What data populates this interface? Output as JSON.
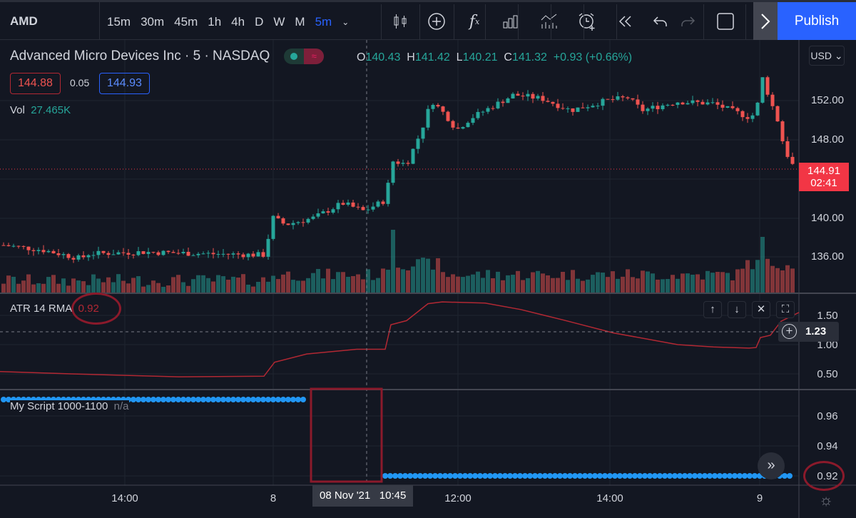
{
  "toolbar": {
    "symbol": "AMD",
    "intervals": [
      "15m",
      "30m",
      "45m",
      "1h",
      "4h",
      "D",
      "W",
      "M"
    ],
    "active_interval": "5m",
    "publish_label": "Publish",
    "icons": [
      "candles-icon",
      "add-circle-icon",
      "indicators-fx-icon",
      "compare-bars-icon",
      "templates-icon",
      "alarm-add-icon",
      "replay-icon",
      "undo-icon",
      "redo-icon",
      "rectangle-icon"
    ]
  },
  "legend": {
    "title": "Advanced Micro Devices Inc · 5 · NASDAQ",
    "o_label": "O",
    "o": "140.43",
    "h_label": "H",
    "h": "141.42",
    "l_label": "L",
    "l": "140.21",
    "c_label": "C",
    "c": "141.32",
    "change": "+0.93 (+0.66%)",
    "bid": "144.88",
    "spread": "0.05",
    "ask": "144.93",
    "vol_label": "Vol",
    "vol": "27.465K"
  },
  "price_axis": {
    "currency": "USD",
    "ticks": [
      "152.00",
      "148.00",
      "140.00",
      "136.00"
    ],
    "last_price": "144.91",
    "countdown": "02:41"
  },
  "atr": {
    "label": "ATR 14 RMA",
    "value": "0.92",
    "ticks": [
      "1.50",
      "1.00",
      "0.50"
    ],
    "crosshair_value": "1.23"
  },
  "script": {
    "label": "My Script 1000-1100",
    "value": "n/a",
    "ticks": [
      "0.96",
      "0.94",
      "0.92"
    ]
  },
  "time_axis": {
    "labels": [
      "14:00",
      "8",
      "12:00",
      "14:00",
      "9"
    ],
    "crosshair_date": "08 Nov '21",
    "crosshair_time": "10:45"
  },
  "colors": {
    "up": "#26a69a",
    "down": "#ef5350",
    "atr": "#b22833",
    "script": "#2196f3",
    "annotation": "#8b1a2b",
    "accent": "#2962ff"
  },
  "chart_data": [
    {
      "type": "candlestick",
      "series": "AMD 5m",
      "approx_close_path": [
        137.2,
        136.7,
        135.8,
        136.3,
        136.5,
        136.3,
        136.2,
        140.0,
        139.3,
        140.0,
        141.5,
        140.7,
        141.8,
        145.8,
        145.5,
        148.8,
        152.0,
        150.5,
        149.0,
        150.2,
        151.8,
        152.6,
        152.2,
        151.0,
        152.0,
        152.3,
        151.0,
        151.9,
        151.7,
        150.3,
        150.7,
        154.5,
        152.0,
        150.0,
        147.0,
        145.5,
        144.9
      ],
      "ylim": [
        133.5,
        157.5
      ]
    },
    {
      "type": "line",
      "series": "ATR 14 RMA",
      "approx_values": [
        0.54,
        0.5,
        0.45,
        0.46,
        0.7,
        0.84,
        0.92,
        0.92,
        1.34,
        1.41,
        1.7,
        1.73,
        1.71,
        1.6,
        1.42,
        1.2,
        1.0,
        0.96,
        0.94,
        0.95,
        1.12,
        1.16,
        1.4,
        1.55
      ],
      "ylim": [
        0.3,
        1.65
      ]
    },
    {
      "type": "scatter",
      "series": "My Script 1000-1100",
      "segments": [
        {
          "value": 0.98,
          "range": "before 08 Nov 10:00"
        },
        {
          "value": 0.92,
          "range": "after 08 Nov 11:00"
        }
      ]
    }
  ]
}
